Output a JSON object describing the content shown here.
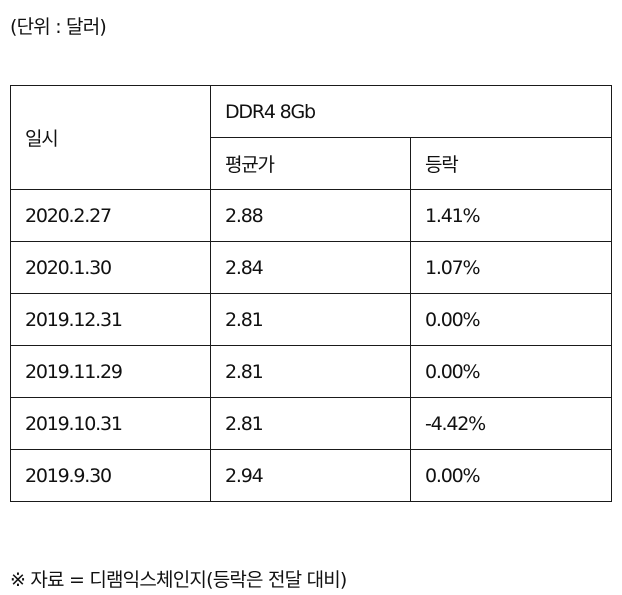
{
  "unit_note": "(단위 : 달러)",
  "table": {
    "header": {
      "date": "일시",
      "product": "DDR4 8Gb",
      "avg_price": "평균가",
      "change": "등락"
    },
    "rows": [
      {
        "date": "2020.2.27",
        "avg_price": "2.88",
        "change": "1.41%"
      },
      {
        "date": "2020.1.30",
        "avg_price": "2.84",
        "change": "1.07%"
      },
      {
        "date": "2019.12.31",
        "avg_price": "2.81",
        "change": "0.00%"
      },
      {
        "date": "2019.11.29",
        "avg_price": "2.81",
        "change": "0.00%"
      },
      {
        "date": "2019.10.31",
        "avg_price": "2.81",
        "change": "-4.42%"
      },
      {
        "date": "2019.9.30",
        "avg_price": "2.94",
        "change": "0.00%"
      }
    ]
  },
  "source_note": "※ 자료 = 디램익스체인지(등락은 전달 대비)"
}
